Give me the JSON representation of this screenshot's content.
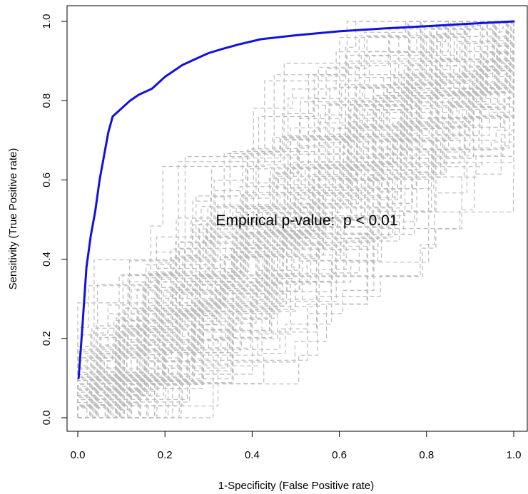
{
  "chart_data": {
    "type": "line",
    "title": "",
    "xlabel": "1-Specificity (False Positive rate)",
    "ylabel": "Sensitivity (True Positive rate)",
    "xlim": [
      0,
      1
    ],
    "ylim": [
      0,
      1
    ],
    "x_ticks": [
      "0.0",
      "0.2",
      "0.4",
      "0.6",
      "0.8",
      "1.0"
    ],
    "y_ticks": [
      "0.0",
      "0.2",
      "0.4",
      "0.6",
      "0.8",
      "1.0"
    ],
    "annotation": "Empirical p-value:  p < 0.01",
    "grid": false,
    "legend": "none",
    "series": [
      {
        "role": "empirical ROC",
        "color": "#1010e0",
        "style": "solid",
        "x": [
          0.002,
          0.01,
          0.02,
          0.03,
          0.04,
          0.05,
          0.06,
          0.07,
          0.08,
          0.09,
          0.1,
          0.12,
          0.14,
          0.15,
          0.17,
          0.19,
          0.2,
          0.22,
          0.24,
          0.27,
          0.3,
          0.33,
          0.37,
          0.42,
          0.5,
          0.6,
          0.7,
          0.8,
          0.9,
          1.0
        ],
        "y": [
          0.1,
          0.22,
          0.38,
          0.46,
          0.52,
          0.6,
          0.66,
          0.72,
          0.76,
          0.77,
          0.78,
          0.8,
          0.815,
          0.82,
          0.83,
          0.85,
          0.86,
          0.875,
          0.89,
          0.905,
          0.92,
          0.93,
          0.942,
          0.955,
          0.965,
          0.975,
          0.982,
          0.988,
          0.994,
          1.0
        ]
      }
    ],
    "background_series": {
      "role": "permutation ROC curves",
      "color": "#bdbdbd",
      "style": "dashed",
      "count": 100
    }
  }
}
